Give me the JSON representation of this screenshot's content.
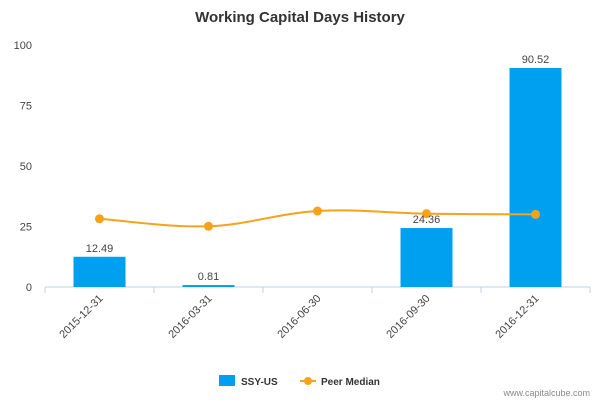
{
  "chart_data": {
    "type": "bar",
    "title": "Working Capital Days History",
    "categories": [
      "2015-12-31",
      "2016-03-31",
      "2016-06-30",
      "2016-09-30",
      "2016-12-31"
    ],
    "series": [
      {
        "name": "SSY-US",
        "type": "bar",
        "values": [
          12.49,
          0.81,
          null,
          24.36,
          90.52
        ],
        "data_labels": [
          "12.49",
          "0.81",
          "",
          "24.36",
          "90.52"
        ],
        "color": "#00a0f0"
      },
      {
        "name": "Peer Median",
        "type": "line",
        "values": [
          28.2,
          25.1,
          31.4,
          30.3,
          30.0
        ],
        "color": "#f7a21b"
      }
    ],
    "yticks": [
      "0",
      "25",
      "50",
      "75",
      "100"
    ],
    "ylim": [
      0,
      100
    ],
    "grid": false,
    "legend_position": "bottom-center"
  },
  "footer": "www.capitalcube.com"
}
